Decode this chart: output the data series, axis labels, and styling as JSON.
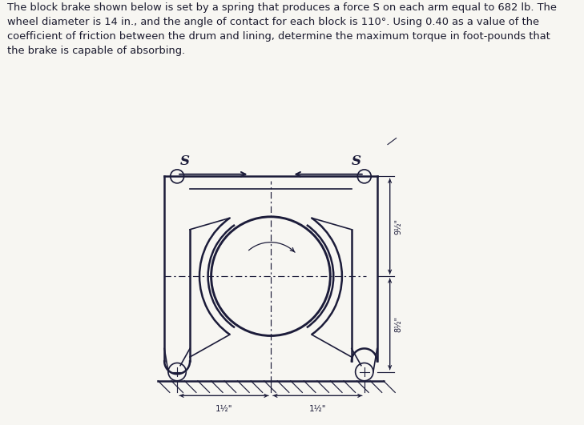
{
  "bg_color": "#f7f6f2",
  "text_color": "#1a1a2e",
  "line_color": "#1c1c3a",
  "paragraph_text": "The block brake shown below is set by a spring that produces a force S on each arm equal to 682 lb. The\nwheel diameter is 14 in., and the angle of contact for each block is 110°. Using 0.40 as a value of the\ncoefficient of friction between the drum and lining, determine the maximum torque in foot-pounds that\nthe brake is capable of absorbing.",
  "label_S_left": "S",
  "label_S_right": "S",
  "dim_top": "9½\"",
  "dim_bottom": "8½\"",
  "dim_foot_left": "1½\"",
  "dim_foot_right": "1½\""
}
